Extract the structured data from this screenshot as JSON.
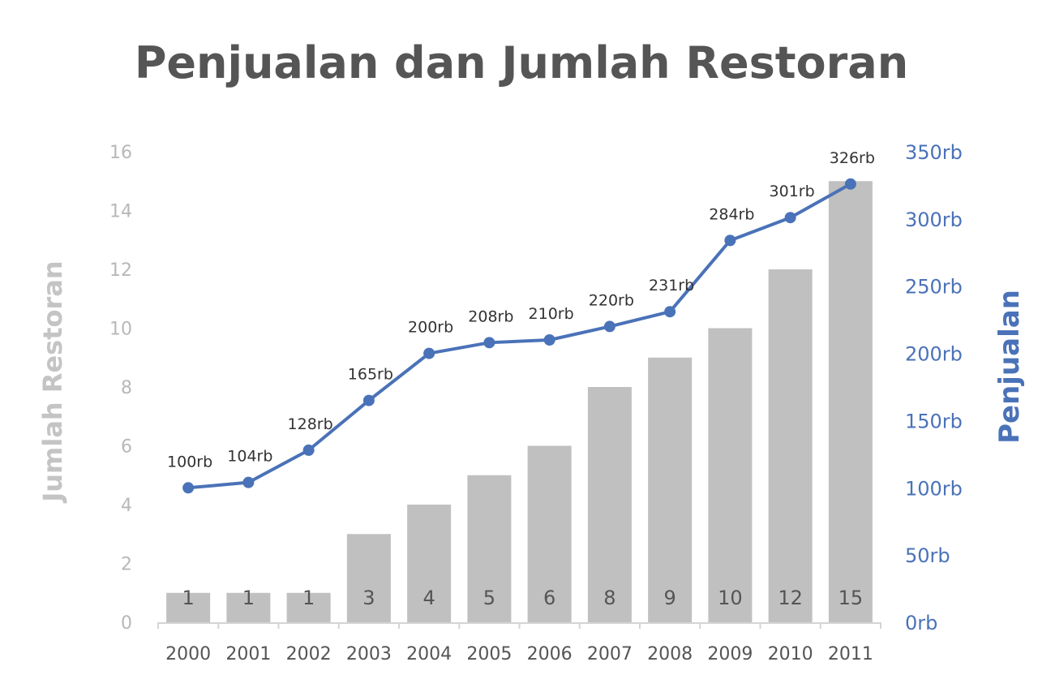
{
  "chart_data": {
    "type": "bar+line",
    "title": "Penjualan dan Jumlah Restoran",
    "categories": [
      "2000",
      "2001",
      "2002",
      "2003",
      "2004",
      "2005",
      "2006",
      "2007",
      "2008",
      "2009",
      "2010",
      "2011"
    ],
    "series": [
      {
        "name": "Jumlah Restoran",
        "type": "bar",
        "axis": "left",
        "color": "#c0c0c0",
        "values": [
          1,
          1,
          1,
          3,
          4,
          5,
          6,
          8,
          9,
          10,
          12,
          15
        ],
        "labels": [
          "1",
          "1",
          "1",
          "3",
          "4",
          "5",
          "6",
          "8",
          "9",
          "10",
          "12",
          "15"
        ]
      },
      {
        "name": "Penjualan",
        "type": "line",
        "axis": "right",
        "color": "#4a72b8",
        "values": [
          100,
          104,
          128,
          165,
          200,
          208,
          210,
          220,
          231,
          284,
          301,
          326
        ],
        "labels": [
          "100rb",
          "104rb",
          "128rb",
          "165rb",
          "200rb",
          "208rb",
          "210rb",
          "220rb",
          "231rb",
          "284rb",
          "301rb",
          "326rb"
        ]
      }
    ],
    "ylabel_left": "Jumlah Restoran",
    "ylabel_right": "Penjualan",
    "ylim_left": [
      0,
      16
    ],
    "ylim_right": [
      0,
      350
    ],
    "yticks_left": [
      "0",
      "2",
      "4",
      "6",
      "8",
      "10",
      "12",
      "14",
      "16"
    ],
    "yticks_right": [
      "0rb",
      "50rb",
      "100rb",
      "150rb",
      "200rb",
      "250rb",
      "300rb",
      "350rb"
    ],
    "grid": false,
    "legend": "none"
  }
}
